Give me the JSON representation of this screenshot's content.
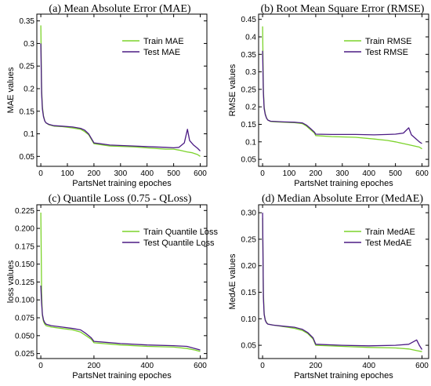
{
  "colors": {
    "train": "#7cd32b",
    "test": "#4b1b84"
  },
  "chart_data": [
    {
      "type": "line",
      "panel": "a",
      "title": "(a) Mean Absolute Error (MAE)",
      "xlabel": "PartsNet training epoches",
      "ylabel": "MAE values",
      "xlim": [
        -15,
        625
      ],
      "ylim": [
        0.028,
        0.365
      ],
      "xticks": [
        0,
        100,
        200,
        300,
        400,
        500,
        600
      ],
      "yticks": [
        0.05,
        0.1,
        0.15,
        0.2,
        0.25,
        0.3,
        0.35
      ],
      "ytick_labels": [
        "0.05",
        "0.1",
        "0.15",
        "0.2",
        "0.25",
        "0.3",
        "0.35"
      ],
      "legend_position": "top-right",
      "series": [
        {
          "name": "Train MAE",
          "color": "#7cd32b",
          "x": [
            0,
            3,
            6,
            10,
            15,
            20,
            30,
            50,
            80,
            120,
            150,
            165,
            180,
            200,
            260,
            350,
            420,
            470,
            500,
            520,
            550,
            570,
            590,
            600
          ],
          "y": [
            0.34,
            0.2,
            0.16,
            0.14,
            0.128,
            0.124,
            0.12,
            0.117,
            0.116,
            0.113,
            0.11,
            0.105,
            0.098,
            0.078,
            0.073,
            0.071,
            0.068,
            0.066,
            0.066,
            0.064,
            0.06,
            0.058,
            0.054,
            0.05
          ]
        },
        {
          "name": "Test MAE",
          "color": "#4b1b84",
          "x": [
            0,
            3,
            6,
            10,
            15,
            20,
            30,
            50,
            80,
            120,
            150,
            165,
            180,
            200,
            260,
            350,
            420,
            470,
            500,
            520,
            540,
            552,
            560,
            575,
            590,
            600
          ],
          "y": [
            0.3,
            0.19,
            0.155,
            0.138,
            0.128,
            0.124,
            0.121,
            0.118,
            0.117,
            0.115,
            0.112,
            0.108,
            0.1,
            0.08,
            0.075,
            0.073,
            0.071,
            0.07,
            0.069,
            0.07,
            0.08,
            0.11,
            0.085,
            0.075,
            0.068,
            0.062
          ]
        }
      ]
    },
    {
      "type": "line",
      "panel": "b",
      "title": "(b) Root Mean Square Error (RMSE)",
      "xlabel": "PartsNet training epoches",
      "ylabel": "RMSE values",
      "xlim": [
        -15,
        625
      ],
      "ylim": [
        0.03,
        0.465
      ],
      "xticks": [
        0,
        100,
        200,
        300,
        400,
        500,
        600
      ],
      "yticks": [
        0.05,
        0.1,
        0.15,
        0.2,
        0.25,
        0.3,
        0.35,
        0.4,
        0.45
      ],
      "ytick_labels": [
        "0.05",
        "0.1",
        "0.15",
        "0.2",
        "0.25",
        "0.3",
        "0.35",
        "0.4",
        "0.45"
      ],
      "legend_position": "top-right",
      "series": [
        {
          "name": "Train RMSE",
          "color": "#7cd32b",
          "x": [
            0,
            3,
            6,
            10,
            15,
            20,
            30,
            50,
            80,
            120,
            150,
            165,
            180,
            195,
            200,
            260,
            350,
            420,
            470,
            500,
            530,
            560,
            590,
            600
          ],
          "y": [
            0.43,
            0.25,
            0.2,
            0.18,
            0.168,
            0.162,
            0.158,
            0.157,
            0.156,
            0.155,
            0.152,
            0.145,
            0.135,
            0.125,
            0.118,
            0.115,
            0.113,
            0.108,
            0.104,
            0.1,
            0.095,
            0.09,
            0.085,
            0.08
          ]
        },
        {
          "name": "Test RMSE",
          "color": "#4b1b84",
          "x": [
            0,
            3,
            6,
            10,
            15,
            20,
            30,
            50,
            80,
            120,
            150,
            165,
            180,
            195,
            200,
            260,
            350,
            420,
            470,
            500,
            530,
            550,
            560,
            575,
            590,
            600
          ],
          "y": [
            0.36,
            0.24,
            0.195,
            0.178,
            0.167,
            0.162,
            0.159,
            0.158,
            0.157,
            0.156,
            0.154,
            0.148,
            0.138,
            0.128,
            0.122,
            0.121,
            0.121,
            0.12,
            0.121,
            0.122,
            0.125,
            0.14,
            0.12,
            0.11,
            0.1,
            0.095
          ]
        }
      ]
    },
    {
      "type": "line",
      "panel": "c",
      "title": "(c) Quantile Loss (0.75 - QLoss)",
      "xlabel": "PartsNet training epoches",
      "ylabel": "loss values",
      "xlim": [
        -15,
        625
      ],
      "ylim": [
        0.018,
        0.233
      ],
      "xticks": [
        0,
        200,
        400,
        600
      ],
      "yticks": [
        0.025,
        0.05,
        0.075,
        0.1,
        0.125,
        0.15,
        0.175,
        0.2,
        0.225
      ],
      "ytick_labels": [
        "0.025",
        "0.050",
        "0.075",
        "0.100",
        "0.125",
        "0.150",
        "0.175",
        "0.200",
        "0.225"
      ],
      "legend_position": "top-right",
      "series": [
        {
          "name": "Train Quantile Loss",
          "color": "#7cd32b",
          "x": [
            0,
            3,
            6,
            10,
            15,
            20,
            40,
            80,
            120,
            150,
            170,
            190,
            200,
            300,
            400,
            500,
            550,
            580,
            600
          ],
          "y": [
            0.222,
            0.11,
            0.078,
            0.07,
            0.066,
            0.064,
            0.062,
            0.06,
            0.058,
            0.055,
            0.05,
            0.045,
            0.04,
            0.037,
            0.035,
            0.034,
            0.032,
            0.03,
            0.028
          ]
        },
        {
          "name": "Test Quantile Loss",
          "color": "#4b1b84",
          "x": [
            0,
            3,
            6,
            10,
            15,
            20,
            40,
            80,
            120,
            150,
            170,
            190,
            200,
            300,
            400,
            500,
            550,
            580,
            600
          ],
          "y": [
            0.12,
            0.095,
            0.08,
            0.072,
            0.068,
            0.066,
            0.064,
            0.062,
            0.06,
            0.058,
            0.053,
            0.047,
            0.042,
            0.039,
            0.037,
            0.036,
            0.035,
            0.032,
            0.03
          ]
        }
      ]
    },
    {
      "type": "line",
      "panel": "d",
      "title": "(d) Median Absolute Error (MedAE)",
      "xlabel": "PartsNet training epoches",
      "ylabel": "MedAE values",
      "xlim": [
        -15,
        625
      ],
      "ylim": [
        0.025,
        0.315
      ],
      "xticks": [
        0,
        200,
        400,
        600
      ],
      "yticks": [
        0.05,
        0.1,
        0.15,
        0.2,
        0.25,
        0.3
      ],
      "ytick_labels": [
        "0.05",
        "0.10",
        "0.15",
        "0.20",
        "0.25",
        "0.30"
      ],
      "legend_position": "top-right",
      "series": [
        {
          "name": "Train MedAE",
          "color": "#7cd32b",
          "x": [
            0,
            3,
            6,
            10,
            15,
            20,
            40,
            80,
            120,
            150,
            170,
            190,
            200,
            300,
            400,
            500,
            550,
            580,
            600
          ],
          "y": [
            0.29,
            0.15,
            0.11,
            0.098,
            0.093,
            0.09,
            0.088,
            0.085,
            0.082,
            0.078,
            0.072,
            0.062,
            0.05,
            0.048,
            0.046,
            0.045,
            0.043,
            0.04,
            0.038
          ]
        },
        {
          "name": "Test MedAE",
          "color": "#4b1b84",
          "x": [
            0,
            3,
            6,
            10,
            15,
            20,
            40,
            80,
            120,
            150,
            170,
            190,
            200,
            300,
            400,
            500,
            550,
            580,
            590,
            600
          ],
          "y": [
            0.3,
            0.14,
            0.108,
            0.097,
            0.092,
            0.09,
            0.088,
            0.086,
            0.084,
            0.08,
            0.074,
            0.064,
            0.052,
            0.05,
            0.049,
            0.05,
            0.052,
            0.06,
            0.05,
            0.042
          ]
        }
      ]
    }
  ]
}
